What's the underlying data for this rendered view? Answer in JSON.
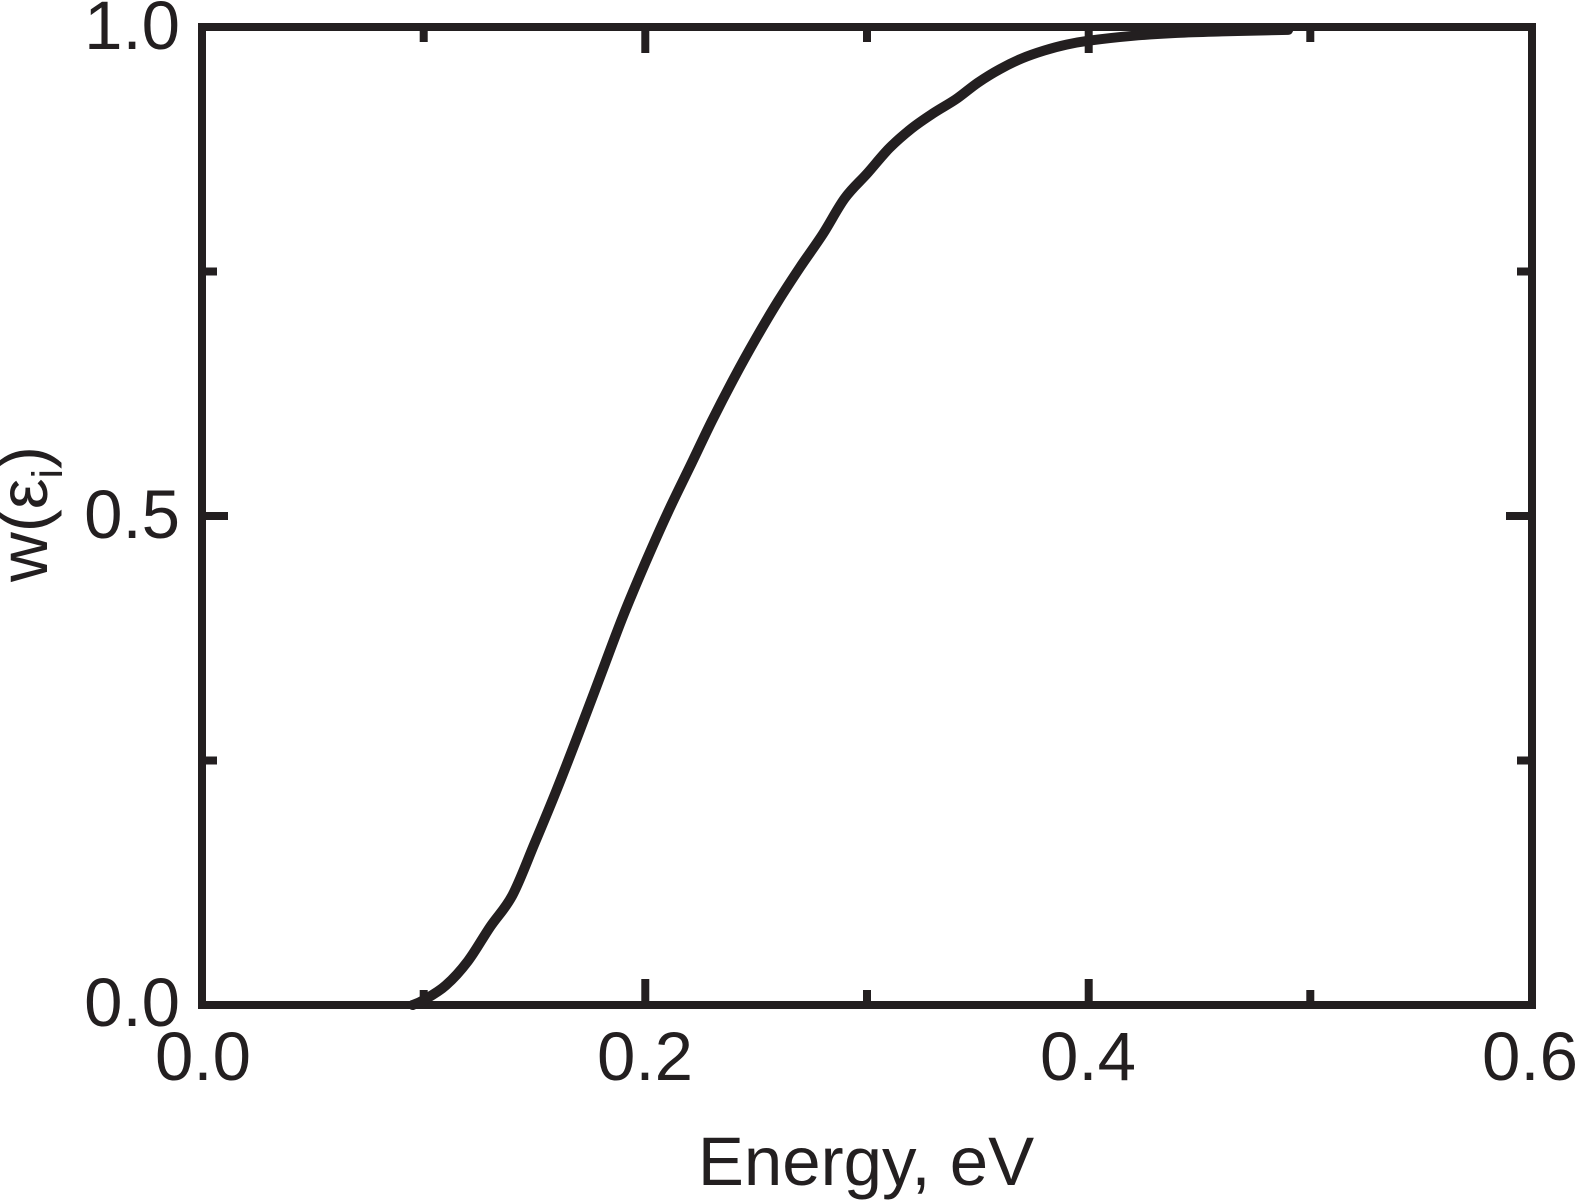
{
  "figure": {
    "background": "#ffffff",
    "ink_color": "#231f20"
  },
  "chart_data": {
    "type": "line",
    "title": "",
    "xlabel": "Energy, eV",
    "ylabel": "w(ε_i)",
    "ylabel_parts": {
      "pre": "w(ε",
      "sub": "i",
      "post": ")"
    },
    "xlim": [
      0.0,
      0.6
    ],
    "ylim": [
      0.0,
      1.0
    ],
    "grid": false,
    "legend": "none",
    "x_tick_labels": [
      "0.0",
      "0.2",
      "0.4",
      "0.6"
    ],
    "y_tick_labels": [
      "0.0",
      "0.5",
      "1.0"
    ],
    "x_major_ticks": [
      0.0,
      0.2,
      0.4,
      0.6
    ],
    "x_minor_ticks": [
      0.1,
      0.3,
      0.5
    ],
    "y_major_ticks": [
      0.0,
      0.5,
      1.0
    ],
    "y_minor_ticks": [
      0.25,
      0.75
    ],
    "series": [
      {
        "name": "w(ei)",
        "color": "#231f20",
        "x": [
          0.095,
          0.1,
          0.11,
          0.12,
          0.13,
          0.14,
          0.15,
          0.16,
          0.17,
          0.18,
          0.19,
          0.2,
          0.21,
          0.22,
          0.23,
          0.24,
          0.25,
          0.26,
          0.27,
          0.28,
          0.29,
          0.3,
          0.31,
          0.32,
          0.33,
          0.34,
          0.35,
          0.36,
          0.37,
          0.38,
          0.39,
          0.4,
          0.42,
          0.44,
          0.46,
          0.48,
          0.49
        ],
        "y": [
          0.0,
          0.005,
          0.02,
          0.045,
          0.08,
          0.112,
          0.165,
          0.22,
          0.278,
          0.338,
          0.398,
          0.452,
          0.503,
          0.55,
          0.597,
          0.641,
          0.682,
          0.72,
          0.755,
          0.788,
          0.825,
          0.85,
          0.876,
          0.896,
          0.912,
          0.926,
          0.943,
          0.957,
          0.968,
          0.976,
          0.982,
          0.986,
          0.991,
          0.994,
          0.9955,
          0.9965,
          0.997
        ]
      }
    ]
  }
}
